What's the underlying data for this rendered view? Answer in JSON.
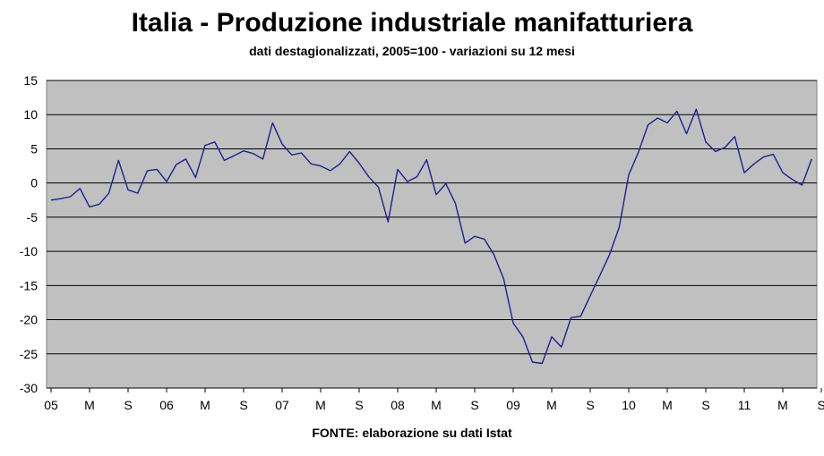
{
  "chart_data": {
    "type": "line",
    "title": "Italia - Produzione industriale manifatturiera",
    "subtitle": "dati destagionalizzati, 2005=100 - variazioni su 12 mesi",
    "source": "FONTE: elaborazione su dati Istat",
    "xlabel": "",
    "ylabel": "",
    "ylim": [
      -30,
      15
    ],
    "yticks": [
      "15",
      "10",
      "5",
      "0",
      "-5",
      "-10",
      "-15",
      "-20",
      "-25",
      "-30"
    ],
    "ytick_values": [
      15,
      10,
      5,
      0,
      -5,
      -10,
      -15,
      -20,
      -25,
      -30
    ],
    "xtick_labels": [
      "05",
      "M",
      "S",
      "06",
      "M",
      "S",
      "07",
      "M",
      "S",
      "08",
      "M",
      "S",
      "09",
      "M",
      "S",
      "10",
      "M",
      "S",
      "11",
      "M",
      "S"
    ],
    "grid": true,
    "plot_background": "#c0c0c0",
    "line_color": "#1f1f8f",
    "series": [
      {
        "values": [
          -2.5,
          -2.3,
          -2.0,
          -0.8,
          -3.5,
          -3.1,
          -1.5,
          3.3,
          -1.0,
          -1.5,
          1.8,
          2.0,
          0.2,
          2.7,
          3.5,
          0.8,
          5.5,
          6.0,
          3.3,
          4.0,
          4.7,
          4.3,
          3.5,
          8.8,
          5.7,
          4.1,
          4.4,
          2.8,
          2.5,
          1.8,
          2.8,
          4.6,
          2.9,
          0.9,
          -0.6,
          -5.7,
          2.0,
          0.2,
          0.9,
          3.4,
          -1.7,
          -0.1,
          -3.0,
          -8.8,
          -7.8,
          -8.2,
          -10.5,
          -14.0,
          -20.5,
          -22.5,
          -26.2,
          -26.4,
          -22.5,
          -24.0,
          -19.7,
          -19.5,
          -16.5,
          -13.5,
          -10.5,
          -6.5,
          1.2,
          4.5,
          8.5,
          9.5,
          8.8,
          10.5,
          7.2,
          10.8,
          6.0,
          4.6,
          5.2,
          6.8,
          1.5,
          2.8,
          3.8,
          4.2,
          1.5,
          0.5,
          -0.3,
          3.5
        ]
      }
    ]
  }
}
